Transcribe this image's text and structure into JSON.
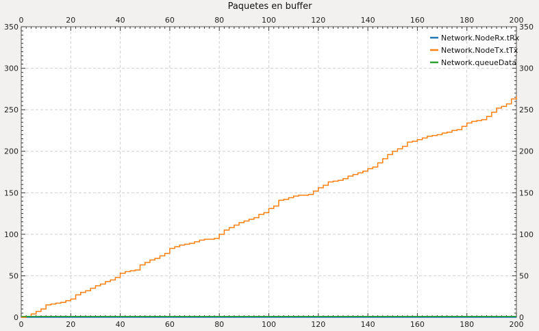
{
  "chart_data": {
    "type": "line",
    "title": "Paquetes en buffer",
    "xlabel": "",
    "ylabel": "",
    "xlim": [
      0,
      200
    ],
    "ylim": [
      0,
      350
    ],
    "x_ticks": [
      0,
      20,
      40,
      60,
      80,
      100,
      120,
      140,
      160,
      180,
      200
    ],
    "y_ticks": [
      0,
      50,
      100,
      150,
      200,
      250,
      300,
      350
    ],
    "grid": true,
    "legend_position": "top-right",
    "series": [
      {
        "name": "Network.NodeRx.tRx",
        "color": "#1f77b4",
        "x": [
          0,
          200
        ],
        "y": [
          0,
          0
        ]
      },
      {
        "name": "Network.NodeTx.tTx",
        "color": "#ff7f0e",
        "x": [
          0,
          2,
          4,
          6,
          8,
          10,
          12,
          14,
          16,
          18,
          20,
          22,
          24,
          26,
          28,
          30,
          32,
          34,
          36,
          38,
          40,
          42,
          44,
          46,
          48,
          50,
          52,
          54,
          56,
          58,
          60,
          62,
          64,
          66,
          68,
          70,
          72,
          74,
          76,
          78,
          80,
          82,
          84,
          86,
          88,
          90,
          92,
          94,
          96,
          98,
          100,
          102,
          104,
          106,
          108,
          110,
          112,
          114,
          116,
          118,
          120,
          122,
          124,
          126,
          128,
          130,
          132,
          134,
          136,
          138,
          140,
          142,
          144,
          146,
          148,
          150,
          152,
          154,
          156,
          158,
          160,
          162,
          164,
          166,
          168,
          170,
          172,
          174,
          176,
          178,
          180,
          182,
          184,
          186,
          188,
          190,
          192,
          194,
          196,
          198,
          200
        ],
        "y": [
          0,
          1,
          4,
          7,
          10,
          15,
          16,
          17,
          18,
          20,
          22,
          27,
          30,
          32,
          35,
          38,
          40,
          43,
          45,
          48,
          53,
          55,
          56,
          57,
          63,
          66,
          69,
          71,
          74,
          77,
          83,
          85,
          87,
          88,
          89,
          91,
          93,
          94,
          94,
          95,
          100,
          105,
          108,
          111,
          114,
          116,
          118,
          120,
          124,
          126,
          131,
          134,
          141,
          142,
          144,
          146,
          147,
          147,
          148,
          152,
          156,
          159,
          163,
          164,
          165,
          167,
          170,
          172,
          174,
          176,
          179,
          181,
          186,
          191,
          196,
          200,
          203,
          206,
          211,
          212,
          214,
          216,
          218,
          219,
          220,
          222,
          223,
          225,
          226,
          230,
          234,
          236,
          237,
          238,
          242,
          247,
          252,
          254,
          257,
          263,
          266
        ]
      },
      {
        "name": "Network.queueData",
        "color": "#2ca02c",
        "x": [
          0,
          200
        ],
        "y": [
          1,
          1
        ]
      }
    ]
  }
}
